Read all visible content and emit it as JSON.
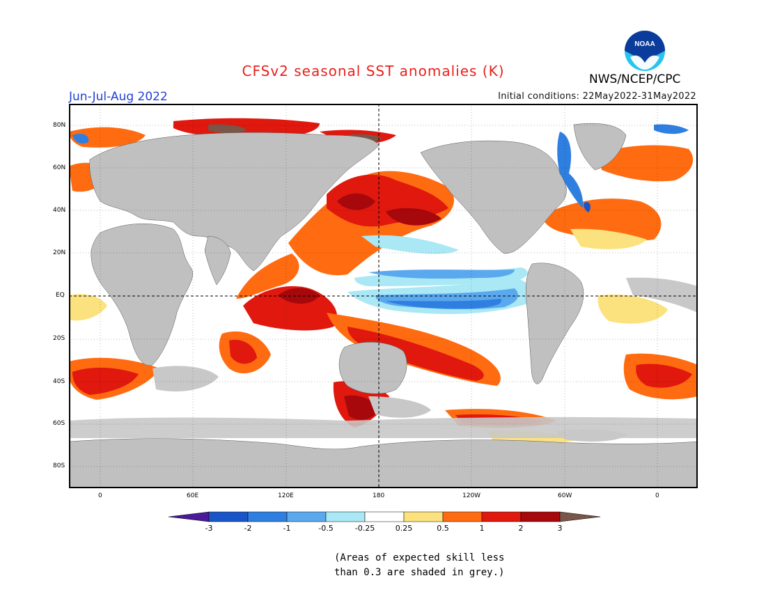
{
  "title": "CFSv2 seasonal SST anomalies (K)",
  "period": "Jun-Jul-Aug 2022",
  "initial_conditions": "Initial conditions: 22May2022-31May2022",
  "agency": "NWS/NCEP/CPC",
  "logo_text": "NOAA",
  "lat_labels": [
    "80N",
    "60N",
    "40N",
    "20N",
    "EQ",
    "20S",
    "40S",
    "60S",
    "80S"
  ],
  "lon_labels": [
    "0",
    "60E",
    "120E",
    "180",
    "120W",
    "60W",
    "0"
  ],
  "colorbar": {
    "unit": "K",
    "tick_labels": [
      "-3",
      "-2",
      "-1",
      "-0.5",
      "-0.25",
      "0.25",
      "0.5",
      "1",
      "2",
      "3"
    ],
    "colors": [
      "#4b1a9a",
      "#1a55c8",
      "#2f7fe0",
      "#5aa8ee",
      "#a9e8f4",
      "#ffffff",
      "#fbe27e",
      "#ff6b10",
      "#e0180e",
      "#a6080c",
      "#7a5548"
    ]
  },
  "skill_note_lines": [
    "(Areas of expected skill less",
    "than 0.3 are shaded in grey.)"
  ],
  "colors": {
    "land": "#c0c0c0",
    "low_skill": "#c8c8c8",
    "title": "#e8201a",
    "period": "#1f3fd6"
  }
}
